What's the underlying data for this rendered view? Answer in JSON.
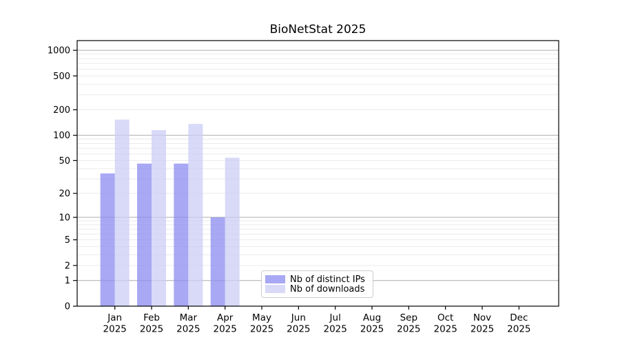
{
  "chart_data": {
    "type": "bar",
    "title": "BioNetStat 2025",
    "categories": [
      "Jan",
      "Feb",
      "Mar",
      "Apr",
      "May",
      "Jun",
      "Jul",
      "Aug",
      "Sep",
      "Oct",
      "Nov",
      "Dec"
    ],
    "x_sublabel": "2025",
    "series": [
      {
        "name": "Nb of distinct IPs",
        "color": "#8b8bf0",
        "alpha": 0.75,
        "values": [
          35,
          46,
          46,
          10,
          0,
          0,
          0,
          0,
          0,
          0,
          0,
          0
        ]
      },
      {
        "name": "Nb of downloads",
        "color": "#ccccf6",
        "alpha": 0.75,
        "values": [
          153,
          115,
          136,
          54,
          0,
          0,
          0,
          0,
          0,
          0,
          0,
          0
        ]
      }
    ],
    "yscale": "log1p",
    "yticks": [
      0,
      1,
      2,
      5,
      10,
      20,
      50,
      100,
      200,
      500,
      1000
    ],
    "ylim": [
      0,
      1300
    ],
    "xlabel": "",
    "ylabel": "",
    "grid": {
      "show": true,
      "major_values": [
        1,
        10,
        100,
        1000
      ],
      "major_color": "#ababab",
      "minor_color": "#eaeaea"
    },
    "legend_position": "lower-center",
    "spine_color": "#000000",
    "background_color": "#ffffff"
  }
}
